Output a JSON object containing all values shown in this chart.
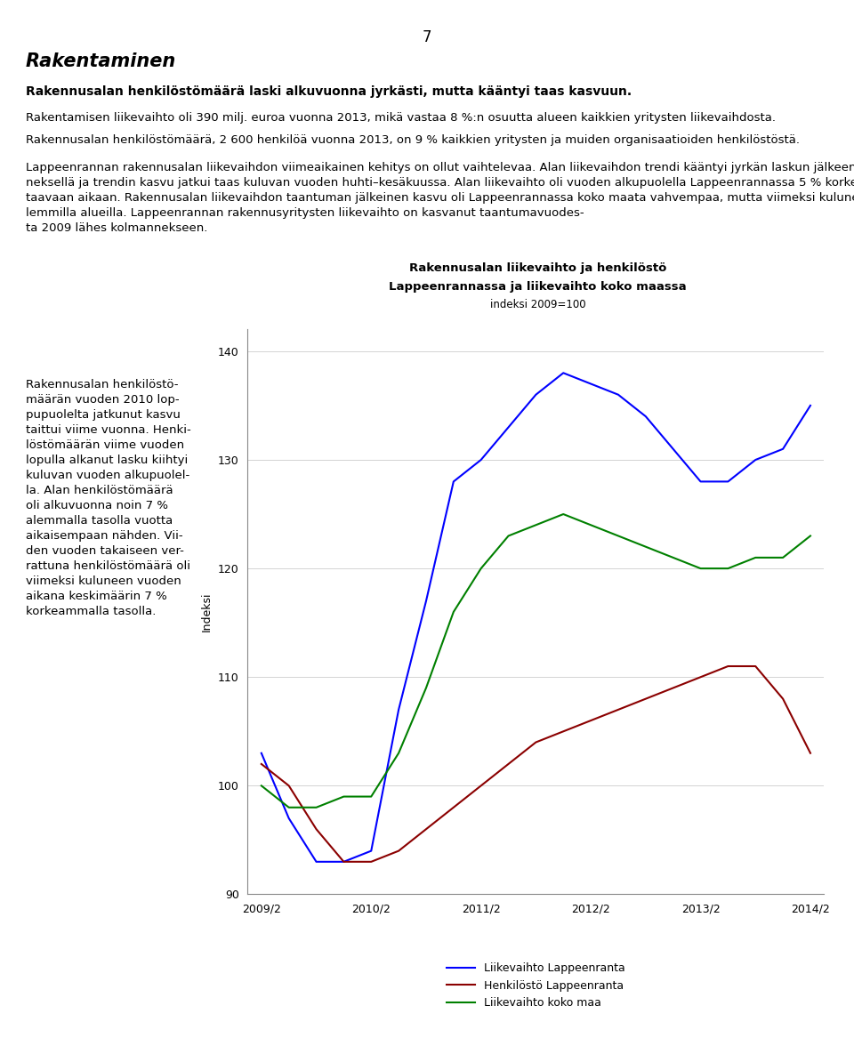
{
  "title_line1": "Rakennusalan liikevaihto ja henkilöstö",
  "title_line2": "Lappeenrannassa ja liikevaihto koko maassa",
  "subtitle": "indeksi 2009=100",
  "ylabel": "Indeksi",
  "ylim": [
    90,
    142
  ],
  "yticks": [
    90,
    100,
    110,
    120,
    130,
    140
  ],
  "page_number": "7",
  "heading": "Rakentaminen",
  "subheading": "Rakennusalan henkilöstömäärä laski alkuvuonna jyrkästi, mutta kääntyi taas kasvuun.",
  "xtick_labels": [
    "2009/2",
    "2010/2",
    "2011/2",
    "2012/2",
    "2013/2",
    "2014/2"
  ],
  "x_positions": [
    0,
    4,
    8,
    12,
    16,
    20
  ],
  "blue_line": {
    "label": "Liikevaihto Lappeenranta",
    "color": "#0000FF",
    "x": [
      0,
      1,
      2,
      3,
      4,
      5,
      6,
      7,
      8,
      9,
      10,
      11,
      12,
      13,
      14,
      15,
      16,
      17,
      18,
      19,
      20
    ],
    "y": [
      103,
      97,
      93,
      93,
      94,
      107,
      117,
      128,
      130,
      133,
      136,
      138,
      137,
      136,
      134,
      131,
      128,
      128,
      130,
      131,
      135
    ]
  },
  "red_line": {
    "label": "Henkilöstö Lappeenranta",
    "color": "#8B0000",
    "x": [
      0,
      1,
      2,
      3,
      4,
      5,
      6,
      7,
      8,
      9,
      10,
      11,
      12,
      13,
      14,
      15,
      16,
      17,
      18,
      19,
      20
    ],
    "y": [
      102,
      100,
      96,
      93,
      93,
      94,
      96,
      98,
      100,
      102,
      104,
      105,
      106,
      107,
      108,
      109,
      110,
      111,
      111,
      108,
      103
    ]
  },
  "green_line": {
    "label": "Liikevaihto koko maa",
    "color": "#008000",
    "x": [
      0,
      1,
      2,
      3,
      4,
      5,
      6,
      7,
      8,
      9,
      10,
      11,
      12,
      13,
      14,
      15,
      16,
      17,
      18,
      19,
      20
    ],
    "y": [
      100,
      98,
      98,
      99,
      99,
      103,
      109,
      116,
      120,
      123,
      124,
      125,
      124,
      123,
      122,
      121,
      120,
      120,
      121,
      121,
      123
    ]
  },
  "legend_entries": [
    {
      "label": "Liikevaihto Lappeenranta",
      "color": "#0000FF"
    },
    {
      "label": "Henkilöstö Lappeenranta",
      "color": "#8B0000"
    },
    {
      "label": "Liikevaihto koko maa",
      "color": "#008000"
    }
  ]
}
